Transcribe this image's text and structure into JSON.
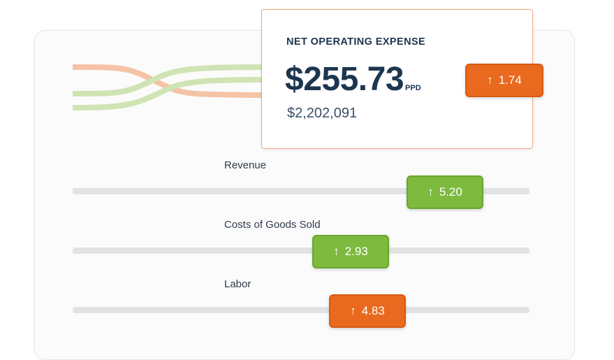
{
  "colors": {
    "orange": "#e9691e",
    "green": "#7dba3e",
    "flow_orange": "#f5c3a6",
    "flow_green": "#cfe4b3",
    "navy": "#1d3650"
  },
  "expense": {
    "title": "NET OPERATING EXPENSE",
    "amount": "$255.73",
    "unit": "PPD",
    "total": "$2,202,091",
    "change": {
      "direction": "up",
      "icon": "arrow-up-icon",
      "value": "1.74",
      "color": "orange"
    }
  },
  "metrics": [
    {
      "label": "Revenue",
      "change": {
        "direction": "up",
        "icon": "arrow-up-icon",
        "value": "5.20",
        "color": "green"
      },
      "slider_position": 0.75
    },
    {
      "label": "Costs of Goods Sold",
      "change": {
        "direction": "up",
        "icon": "arrow-up-icon",
        "value": "2.93",
        "color": "green"
      },
      "slider_position": 0.54
    },
    {
      "label": "Labor",
      "change": {
        "direction": "up",
        "icon": "arrow-up-icon",
        "value": "4.83",
        "color": "orange"
      },
      "slider_position": 0.58
    }
  ]
}
